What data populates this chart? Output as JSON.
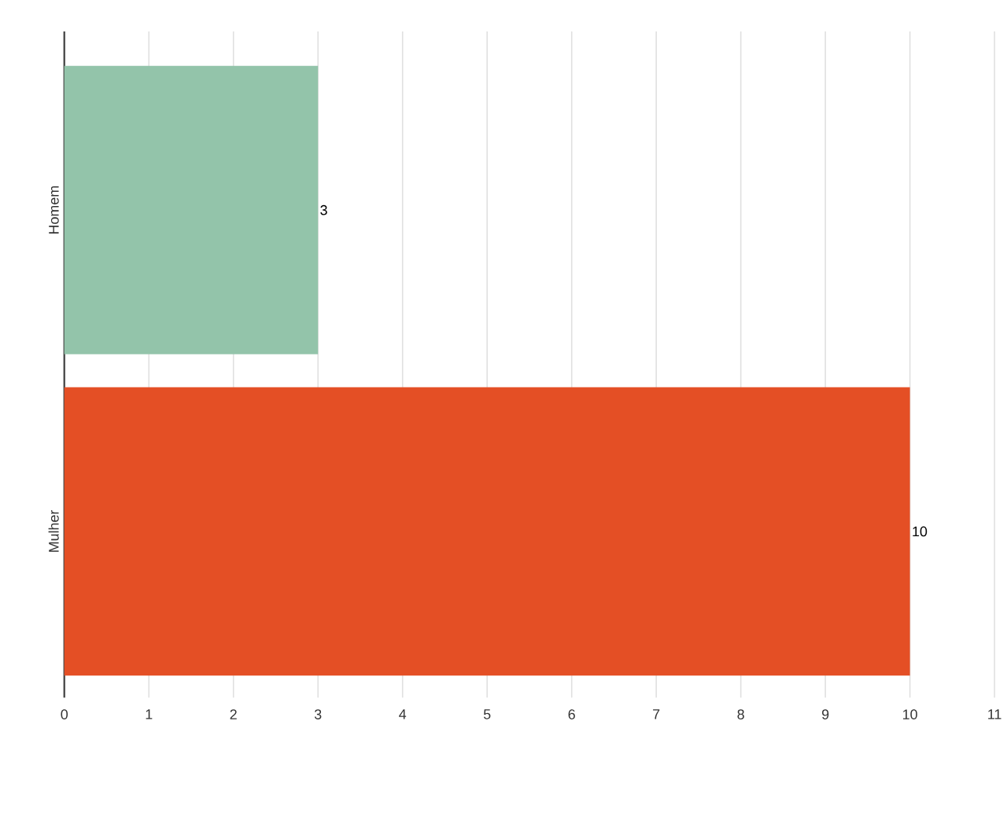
{
  "chart_data": {
    "type": "bar",
    "orientation": "horizontal",
    "categories": [
      "Homem",
      "Mulher"
    ],
    "values": [
      3,
      10
    ],
    "colors": [
      "#93c4aa",
      "#e44f25"
    ],
    "xlim": [
      0,
      11
    ],
    "xticks": [
      0,
      1,
      2,
      3,
      4,
      5,
      6,
      7,
      8,
      9,
      10,
      11
    ],
    "grid": "x",
    "data_labels": true
  }
}
